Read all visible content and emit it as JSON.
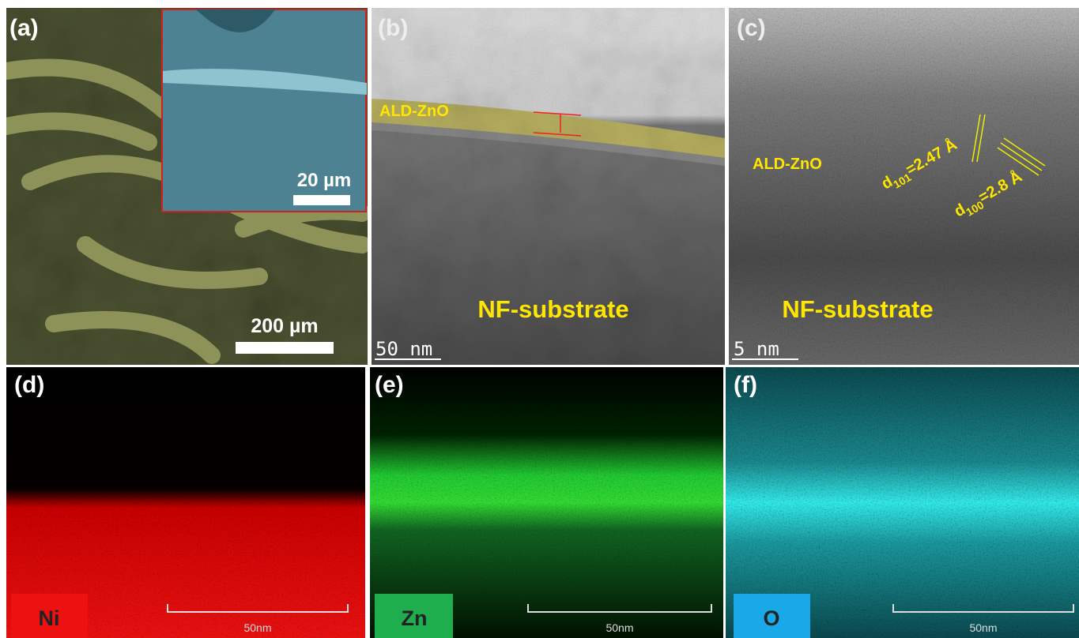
{
  "panels": [
    {
      "label": "(a)",
      "inset_scale": "20 µm",
      "scale": "200 µm"
    },
    {
      "label": "(b)",
      "layer": "ALD-ZnO",
      "substrate": "NF-substrate",
      "scale": "50 nm"
    },
    {
      "label": "(c)",
      "layer": "ALD-ZnO",
      "spacings": [
        {
          "symbol": "d",
          "index": "101",
          "value": "=2.47 Å"
        },
        {
          "symbol": "d",
          "index": "100",
          "value": "=2.8 Å"
        }
      ],
      "substrate": "NF-substrate",
      "scale": "5 nm"
    },
    {
      "label": "(d)",
      "element": "Ni",
      "scale": "50nm"
    },
    {
      "label": "(e)",
      "element": "Zn",
      "scale": "50nm"
    },
    {
      "label": "(f)",
      "element": "O",
      "scale": "50nm"
    }
  ]
}
